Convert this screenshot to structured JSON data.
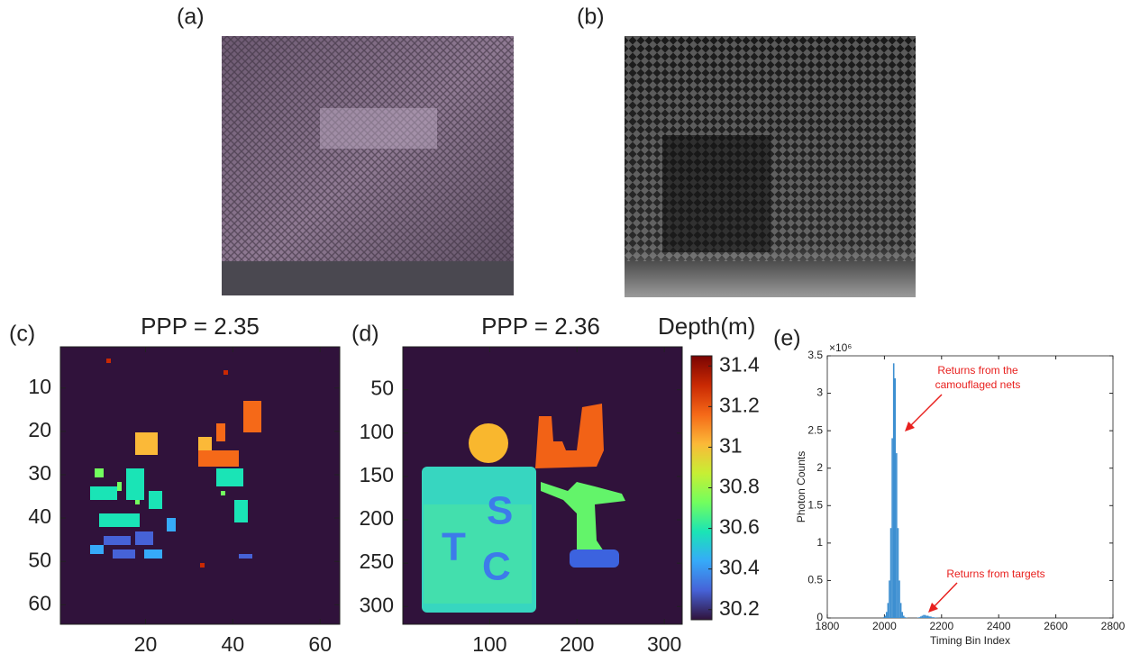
{
  "chart_data": [
    {
      "type": "image",
      "label": "(a)"
    },
    {
      "type": "image",
      "label": "(b)"
    },
    {
      "type": "heatmap",
      "label": "(c)",
      "title": "PPP = 2.35",
      "xlim": [
        0.5,
        64.5
      ],
      "ylim": [
        64.5,
        0.5
      ],
      "xticks": [
        20,
        40,
        60
      ],
      "yticks": [
        10,
        20,
        30,
        40,
        50,
        60
      ]
    },
    {
      "type": "heatmap",
      "label": "(d)",
      "title": "PPP = 2.36",
      "xlim": [
        0.5,
        320.5
      ],
      "ylim": [
        320.5,
        0.5
      ],
      "xticks": [
        100,
        200,
        300
      ],
      "yticks": [
        50,
        100,
        150,
        200,
        250,
        300
      ],
      "colorbar": {
        "label": "Depth(m)",
        "lim": [
          30.15,
          31.45
        ],
        "ticks": [
          30.2,
          30.4,
          30.6,
          30.8,
          31,
          31.2,
          31.4
        ],
        "colors": [
          "#30123b",
          "#4662d7",
          "#36aaf9",
          "#1ae4b6",
          "#72fe5e",
          "#c7ef34",
          "#fbb938",
          "#f56918",
          "#c92903",
          "#7a0403"
        ]
      }
    },
    {
      "type": "histogram",
      "label": "(e)",
      "xlabel": "Timing Bin Index",
      "ylabel": "Photon Counts",
      "y_exponent": "×10⁶",
      "color": "#3d8fd1",
      "xlim": [
        1800,
        2800
      ],
      "ylim": [
        0,
        3.5
      ],
      "xticks": [
        1800,
        2000,
        2200,
        2400,
        2600,
        2800
      ],
      "yticks": [
        0,
        0.5,
        1,
        1.5,
        2,
        2.5,
        3,
        3.5
      ],
      "bins": [
        1995,
        2000,
        2005,
        2010,
        2015,
        2020,
        2025,
        2030,
        2035,
        2040,
        2045,
        2050,
        2055,
        2060,
        2065,
        2070,
        2075,
        2080,
        2085,
        2090,
        2095,
        2100,
        2105,
        2110,
        2115,
        2120,
        2125,
        2130,
        2135,
        2140,
        2145,
        2150,
        2155,
        2160,
        2165,
        2170,
        2175,
        2180,
        2185,
        2190
      ],
      "counts": [
        0.01,
        0.03,
        0.08,
        0.2,
        0.5,
        1.2,
        2.4,
        3.4,
        3.2,
        2.2,
        1.2,
        0.5,
        0.2,
        0.08,
        0.03,
        0.01,
        0.005,
        0,
        0,
        0,
        0,
        0,
        0,
        0,
        0.005,
        0.01,
        0.02,
        0.03,
        0.04,
        0.04,
        0.03,
        0.03,
        0.02,
        0.02,
        0.01,
        0.01,
        0.005,
        0.003,
        0.002
      ],
      "annotations": [
        "Returns from the",
        "camouflaged nets",
        "Returns from targets"
      ]
    }
  ]
}
